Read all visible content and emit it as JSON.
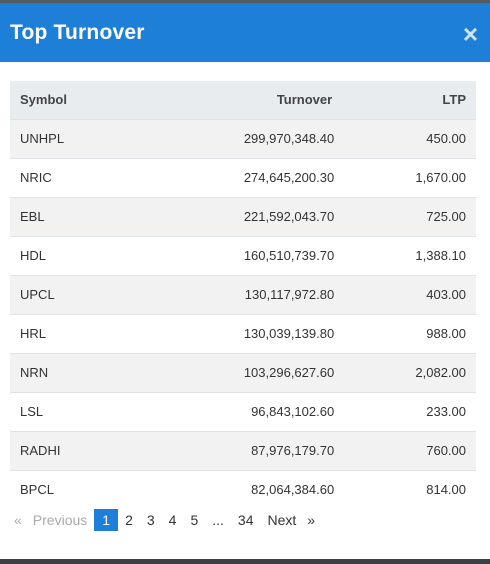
{
  "modal": {
    "title": "Top Turnover",
    "close_label": "×"
  },
  "table": {
    "headers": {
      "symbol": "Symbol",
      "turnover": "Turnover",
      "ltp": "LTP"
    },
    "rows": [
      {
        "symbol": "UNHPL",
        "turnover": "299,970,348.40",
        "ltp": "450.00"
      },
      {
        "symbol": "NRIC",
        "turnover": "274,645,200.30",
        "ltp": "1,670.00"
      },
      {
        "symbol": "EBL",
        "turnover": "221,592,043.70",
        "ltp": "725.00"
      },
      {
        "symbol": "HDL",
        "turnover": "160,510,739.70",
        "ltp": "1,388.10"
      },
      {
        "symbol": "UPCL",
        "turnover": "130,117,972.80",
        "ltp": "403.00"
      },
      {
        "symbol": "HRL",
        "turnover": "130,039,139.80",
        "ltp": "988.00"
      },
      {
        "symbol": "NRN",
        "turnover": "103,296,627.60",
        "ltp": "2,082.00"
      },
      {
        "symbol": "LSL",
        "turnover": "96,843,102.60",
        "ltp": "233.00"
      },
      {
        "symbol": "RADHI",
        "turnover": "87,976,179.70",
        "ltp": "760.00"
      },
      {
        "symbol": "BPCL",
        "turnover": "82,064,384.60",
        "ltp": "814.00"
      }
    ]
  },
  "pagination": {
    "prev_arrow": "«",
    "previous": "Previous",
    "pages": [
      "1",
      "2",
      "3",
      "4",
      "5",
      "...",
      "34"
    ],
    "next": "Next",
    "next_arrow": "»",
    "active_page": "1"
  },
  "colors": {
    "header_blue": "#1e7fd8",
    "active_page": "#1e7fd8"
  }
}
